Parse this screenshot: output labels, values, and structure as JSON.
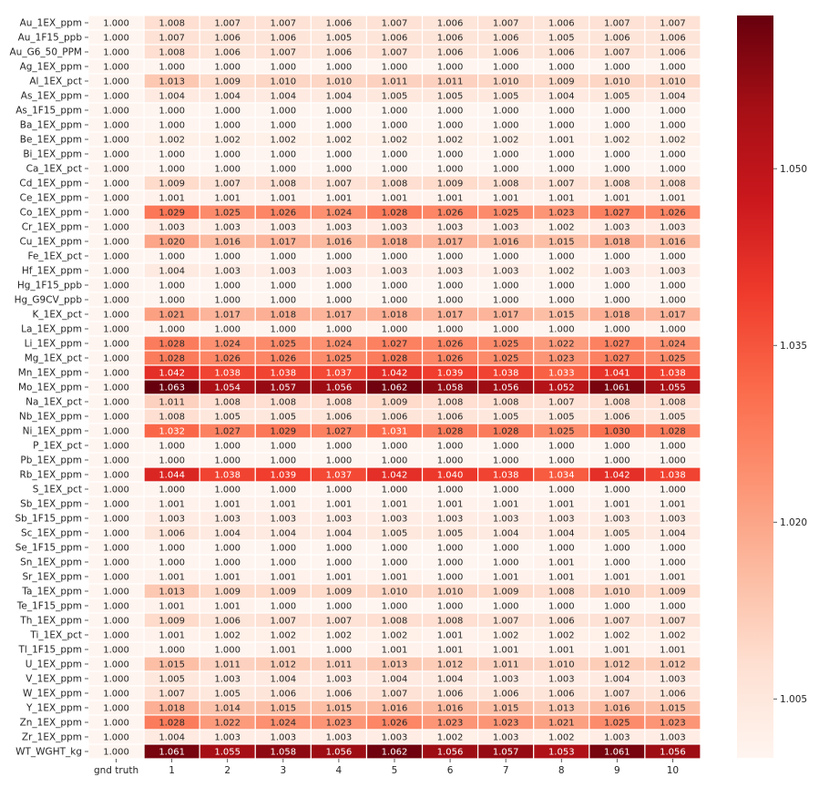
{
  "chart_data": {
    "type": "heatmap",
    "title": "",
    "xlabel": "",
    "ylabel": "",
    "x_labels": [
      "gnd truth",
      "1",
      "2",
      "3",
      "4",
      "5",
      "6",
      "7",
      "8",
      "9",
      "10"
    ],
    "y_labels": [
      "Au_1EX_ppm",
      "Au_1F15_ppb",
      "Au_G6_50_PPM",
      "Ag_1EX_ppm",
      "Al_1EX_pct",
      "As_1EX_ppm",
      "As_1F15_ppm",
      "Ba_1EX_ppm",
      "Be_1EX_ppm",
      "Bi_1EX_ppm",
      "Ca_1EX_pct",
      "Cd_1EX_ppm",
      "Ce_1EX_ppm",
      "Co_1EX_ppm",
      "Cr_1EX_ppm",
      "Cu_1EX_ppm",
      "Fe_1EX_pct",
      "Hf_1EX_ppm",
      "Hg_1F15_ppb",
      "Hg_G9CV_ppb",
      "K_1EX_pct",
      "La_1EX_ppm",
      "Li_1EX_ppm",
      "Mg_1EX_pct",
      "Mn_1EX_ppm",
      "Mo_1EX_ppm",
      "Na_1EX_pct",
      "Nb_1EX_ppm",
      "Ni_1EX_ppm",
      "P_1EX_pct",
      "Pb_1EX_ppm",
      "Rb_1EX_ppm",
      "S_1EX_pct",
      "Sb_1EX_ppm",
      "Sb_1F15_ppm",
      "Sc_1EX_ppm",
      "Se_1F15_ppm",
      "Sn_1EX_ppm",
      "Sr_1EX_ppm",
      "Ta_1EX_ppm",
      "Te_1F15_ppm",
      "Th_1EX_ppm",
      "Ti_1EX_pct",
      "Tl_1F15_ppm",
      "U_1EX_ppm",
      "V_1EX_ppm",
      "W_1EX_ppm",
      "Y_1EX_ppm",
      "Zn_1EX_ppm",
      "Zr_1EX_ppm",
      "WT_WGHT_kg"
    ],
    "values": [
      [
        "1.000",
        "1.008",
        "1.007",
        "1.007",
        "1.006",
        "1.007",
        "1.006",
        "1.007",
        "1.006",
        "1.007",
        "1.007"
      ],
      [
        "1.000",
        "1.007",
        "1.006",
        "1.006",
        "1.005",
        "1.006",
        "1.006",
        "1.006",
        "1.005",
        "1.006",
        "1.006"
      ],
      [
        "1.000",
        "1.008",
        "1.006",
        "1.007",
        "1.006",
        "1.007",
        "1.006",
        "1.006",
        "1.006",
        "1.007",
        "1.006"
      ],
      [
        "1.000",
        "1.000",
        "1.000",
        "1.000",
        "1.000",
        "1.000",
        "1.000",
        "1.000",
        "1.000",
        "1.000",
        "1.000"
      ],
      [
        "1.000",
        "1.013",
        "1.009",
        "1.010",
        "1.010",
        "1.011",
        "1.011",
        "1.010",
        "1.009",
        "1.010",
        "1.010"
      ],
      [
        "1.000",
        "1.004",
        "1.004",
        "1.004",
        "1.004",
        "1.005",
        "1.005",
        "1.005",
        "1.004",
        "1.005",
        "1.004"
      ],
      [
        "1.000",
        "1.000",
        "1.000",
        "1.000",
        "1.000",
        "1.000",
        "1.000",
        "1.000",
        "1.000",
        "1.000",
        "1.000"
      ],
      [
        "1.000",
        "1.000",
        "1.000",
        "1.000",
        "1.000",
        "1.000",
        "1.000",
        "1.000",
        "1.000",
        "1.000",
        "1.000"
      ],
      [
        "1.000",
        "1.002",
        "1.002",
        "1.002",
        "1.002",
        "1.002",
        "1.002",
        "1.002",
        "1.001",
        "1.002",
        "1.002"
      ],
      [
        "1.000",
        "1.000",
        "1.000",
        "1.000",
        "1.000",
        "1.000",
        "1.000",
        "1.000",
        "1.000",
        "1.000",
        "1.000"
      ],
      [
        "1.000",
        "1.000",
        "1.000",
        "1.000",
        "1.000",
        "1.000",
        "1.000",
        "1.000",
        "1.000",
        "1.000",
        "1.000"
      ],
      [
        "1.000",
        "1.009",
        "1.007",
        "1.008",
        "1.007",
        "1.008",
        "1.009",
        "1.008",
        "1.007",
        "1.008",
        "1.008"
      ],
      [
        "1.000",
        "1.001",
        "1.001",
        "1.001",
        "1.001",
        "1.001",
        "1.001",
        "1.001",
        "1.001",
        "1.001",
        "1.001"
      ],
      [
        "1.000",
        "1.029",
        "1.025",
        "1.026",
        "1.024",
        "1.028",
        "1.026",
        "1.025",
        "1.023",
        "1.027",
        "1.026"
      ],
      [
        "1.000",
        "1.003",
        "1.003",
        "1.003",
        "1.003",
        "1.003",
        "1.003",
        "1.003",
        "1.002",
        "1.003",
        "1.003"
      ],
      [
        "1.000",
        "1.020",
        "1.016",
        "1.017",
        "1.016",
        "1.018",
        "1.017",
        "1.016",
        "1.015",
        "1.018",
        "1.016"
      ],
      [
        "1.000",
        "1.000",
        "1.000",
        "1.000",
        "1.000",
        "1.000",
        "1.000",
        "1.000",
        "1.000",
        "1.000",
        "1.000"
      ],
      [
        "1.000",
        "1.004",
        "1.003",
        "1.003",
        "1.003",
        "1.003",
        "1.003",
        "1.003",
        "1.002",
        "1.003",
        "1.003"
      ],
      [
        "1.000",
        "1.000",
        "1.000",
        "1.000",
        "1.000",
        "1.000",
        "1.000",
        "1.000",
        "1.000",
        "1.000",
        "1.000"
      ],
      [
        "1.000",
        "1.000",
        "1.000",
        "1.000",
        "1.000",
        "1.000",
        "1.000",
        "1.000",
        "1.000",
        "1.000",
        "1.000"
      ],
      [
        "1.000",
        "1.021",
        "1.017",
        "1.018",
        "1.017",
        "1.018",
        "1.017",
        "1.017",
        "1.015",
        "1.018",
        "1.017"
      ],
      [
        "1.000",
        "1.000",
        "1.000",
        "1.000",
        "1.000",
        "1.000",
        "1.000",
        "1.000",
        "1.000",
        "1.000",
        "1.000"
      ],
      [
        "1.000",
        "1.028",
        "1.024",
        "1.025",
        "1.024",
        "1.027",
        "1.026",
        "1.025",
        "1.022",
        "1.027",
        "1.024"
      ],
      [
        "1.000",
        "1.028",
        "1.026",
        "1.026",
        "1.025",
        "1.028",
        "1.026",
        "1.025",
        "1.023",
        "1.027",
        "1.025"
      ],
      [
        "1.000",
        "1.042",
        "1.038",
        "1.038",
        "1.037",
        "1.042",
        "1.039",
        "1.038",
        "1.033",
        "1.041",
        "1.038"
      ],
      [
        "1.000",
        "1.063",
        "1.054",
        "1.057",
        "1.056",
        "1.062",
        "1.058",
        "1.056",
        "1.052",
        "1.061",
        "1.055"
      ],
      [
        "1.000",
        "1.011",
        "1.008",
        "1.008",
        "1.008",
        "1.009",
        "1.008",
        "1.008",
        "1.007",
        "1.008",
        "1.008"
      ],
      [
        "1.000",
        "1.008",
        "1.005",
        "1.005",
        "1.006",
        "1.006",
        "1.006",
        "1.005",
        "1.005",
        "1.006",
        "1.005"
      ],
      [
        "1.000",
        "1.032",
        "1.027",
        "1.029",
        "1.027",
        "1.031",
        "1.028",
        "1.028",
        "1.025",
        "1.030",
        "1.028"
      ],
      [
        "1.000",
        "1.000",
        "1.000",
        "1.000",
        "1.000",
        "1.000",
        "1.000",
        "1.000",
        "1.000",
        "1.000",
        "1.000"
      ],
      [
        "1.000",
        "1.000",
        "1.000",
        "1.000",
        "1.000",
        "1.000",
        "1.000",
        "1.000",
        "1.000",
        "1.000",
        "1.000"
      ],
      [
        "1.000",
        "1.044",
        "1.038",
        "1.039",
        "1.037",
        "1.042",
        "1.040",
        "1.038",
        "1.034",
        "1.042",
        "1.038"
      ],
      [
        "1.000",
        "1.000",
        "1.000",
        "1.000",
        "1.000",
        "1.000",
        "1.000",
        "1.000",
        "1.000",
        "1.000",
        "1.000"
      ],
      [
        "1.000",
        "1.001",
        "1.001",
        "1.001",
        "1.001",
        "1.001",
        "1.001",
        "1.001",
        "1.001",
        "1.001",
        "1.001"
      ],
      [
        "1.000",
        "1.003",
        "1.003",
        "1.003",
        "1.003",
        "1.003",
        "1.003",
        "1.003",
        "1.003",
        "1.003",
        "1.003"
      ],
      [
        "1.000",
        "1.006",
        "1.004",
        "1.004",
        "1.004",
        "1.005",
        "1.005",
        "1.004",
        "1.004",
        "1.005",
        "1.004"
      ],
      [
        "1.000",
        "1.000",
        "1.000",
        "1.000",
        "1.000",
        "1.000",
        "1.000",
        "1.000",
        "1.000",
        "1.000",
        "1.000"
      ],
      [
        "1.000",
        "1.000",
        "1.000",
        "1.000",
        "1.000",
        "1.000",
        "1.000",
        "1.000",
        "1.001",
        "1.000",
        "1.000"
      ],
      [
        "1.000",
        "1.001",
        "1.001",
        "1.001",
        "1.001",
        "1.001",
        "1.000",
        "1.001",
        "1.001",
        "1.001",
        "1.001"
      ],
      [
        "1.000",
        "1.013",
        "1.009",
        "1.009",
        "1.009",
        "1.010",
        "1.010",
        "1.009",
        "1.008",
        "1.010",
        "1.009"
      ],
      [
        "1.000",
        "1.001",
        "1.001",
        "1.000",
        "1.000",
        "1.000",
        "1.000",
        "1.000",
        "1.000",
        "1.000",
        "1.000"
      ],
      [
        "1.000",
        "1.009",
        "1.006",
        "1.007",
        "1.007",
        "1.008",
        "1.008",
        "1.007",
        "1.006",
        "1.007",
        "1.007"
      ],
      [
        "1.000",
        "1.001",
        "1.002",
        "1.002",
        "1.002",
        "1.002",
        "1.001",
        "1.002",
        "1.002",
        "1.002",
        "1.002"
      ],
      [
        "1.000",
        "1.000",
        "1.000",
        "1.001",
        "1.000",
        "1.001",
        "1.001",
        "1.001",
        "1.001",
        "1.001",
        "1.001"
      ],
      [
        "1.000",
        "1.015",
        "1.011",
        "1.012",
        "1.011",
        "1.013",
        "1.012",
        "1.011",
        "1.010",
        "1.012",
        "1.012"
      ],
      [
        "1.000",
        "1.005",
        "1.003",
        "1.004",
        "1.003",
        "1.004",
        "1.004",
        "1.003",
        "1.003",
        "1.004",
        "1.003"
      ],
      [
        "1.000",
        "1.007",
        "1.005",
        "1.006",
        "1.006",
        "1.007",
        "1.006",
        "1.006",
        "1.006",
        "1.007",
        "1.006"
      ],
      [
        "1.000",
        "1.018",
        "1.014",
        "1.015",
        "1.015",
        "1.016",
        "1.016",
        "1.015",
        "1.013",
        "1.016",
        "1.015"
      ],
      [
        "1.000",
        "1.028",
        "1.022",
        "1.024",
        "1.023",
        "1.026",
        "1.023",
        "1.023",
        "1.021",
        "1.025",
        "1.023"
      ],
      [
        "1.000",
        "1.004",
        "1.003",
        "1.003",
        "1.003",
        "1.003",
        "1.002",
        "1.003",
        "1.002",
        "1.003",
        "1.003"
      ],
      [
        "1.000",
        "1.061",
        "1.055",
        "1.058",
        "1.056",
        "1.062",
        "1.056",
        "1.057",
        "1.053",
        "1.061",
        "1.056"
      ]
    ],
    "colormap": "Reds",
    "color_range": [
      1.0,
      1.063
    ],
    "colorbar_ticks": [
      "1.005",
      "1.020",
      "1.035",
      "1.050"
    ],
    "grid": false,
    "legend": "colorbar-right"
  }
}
